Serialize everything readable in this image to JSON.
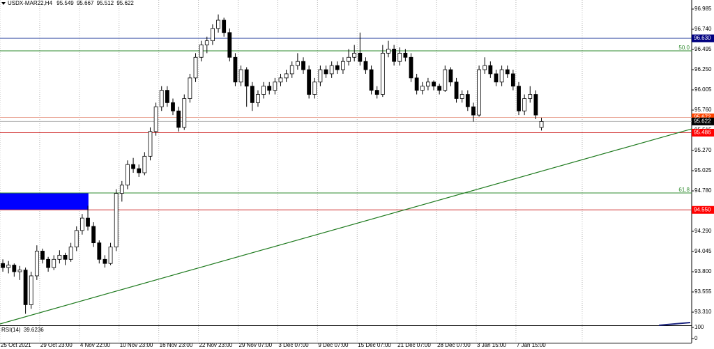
{
  "chart_data": {
    "type": "candlestick",
    "symbol": "USDX-MAR22,H4",
    "ohlc": [
      [
        93.9,
        93.95,
        93.8,
        93.85
      ],
      [
        93.85,
        93.93,
        93.78,
        93.88
      ],
      [
        93.88,
        93.9,
        93.74,
        93.8
      ],
      [
        93.8,
        93.87,
        93.7,
        93.82
      ],
      [
        93.82,
        93.85,
        93.29,
        93.4
      ],
      [
        93.4,
        93.8,
        93.35,
        93.75
      ],
      [
        93.75,
        94.12,
        93.7,
        94.05
      ],
      [
        94.05,
        94.08,
        93.9,
        93.95
      ],
      [
        93.95,
        93.98,
        93.8,
        93.85
      ],
      [
        93.85,
        94.0,
        93.82,
        93.95
      ],
      [
        93.95,
        94.06,
        93.9,
        94.0
      ],
      [
        94.0,
        94.03,
        93.88,
        93.95
      ],
      [
        93.95,
        94.15,
        93.92,
        94.1
      ],
      [
        94.1,
        94.35,
        94.05,
        94.3
      ],
      [
        94.3,
        94.5,
        94.25,
        94.45
      ],
      [
        94.45,
        94.6,
        94.3,
        94.35
      ],
      [
        94.35,
        94.4,
        94.1,
        94.15
      ],
      [
        94.15,
        94.18,
        93.9,
        93.95
      ],
      [
        93.95,
        94.0,
        93.85,
        93.9
      ],
      [
        93.9,
        94.15,
        93.88,
        94.1
      ],
      [
        94.1,
        94.8,
        94.05,
        94.75
      ],
      [
        94.75,
        94.9,
        94.65,
        94.85
      ],
      [
        94.85,
        95.15,
        94.8,
        95.1
      ],
      [
        95.1,
        95.18,
        95.0,
        95.05
      ],
      [
        95.05,
        95.1,
        94.95,
        95.0
      ],
      [
        95.0,
        95.25,
        94.97,
        95.2
      ],
      [
        95.2,
        95.55,
        95.15,
        95.5
      ],
      [
        95.5,
        95.85,
        95.45,
        95.8
      ],
      [
        95.8,
        96.05,
        95.75,
        96.0
      ],
      [
        96.0,
        96.05,
        95.8,
        95.85
      ],
      [
        95.85,
        95.9,
        95.7,
        95.75
      ],
      [
        95.75,
        95.8,
        95.5,
        95.55
      ],
      [
        95.55,
        95.95,
        95.52,
        95.9
      ],
      [
        95.9,
        96.2,
        95.85,
        96.15
      ],
      [
        96.15,
        96.45,
        96.1,
        96.4
      ],
      [
        96.4,
        96.6,
        96.35,
        96.55
      ],
      [
        96.55,
        96.65,
        96.45,
        96.6
      ],
      [
        96.6,
        96.8,
        96.55,
        96.75
      ],
      [
        96.75,
        96.92,
        96.7,
        96.85
      ],
      [
        96.85,
        96.88,
        96.65,
        96.7
      ],
      [
        96.7,
        96.75,
        96.35,
        96.4
      ],
      [
        96.4,
        96.45,
        96.05,
        96.1
      ],
      [
        96.1,
        96.3,
        96.05,
        96.25
      ],
      [
        96.25,
        96.28,
        95.8,
        96.05
      ],
      [
        96.05,
        96.1,
        95.75,
        95.85
      ],
      [
        95.85,
        96.0,
        95.8,
        95.95
      ],
      [
        95.95,
        96.1,
        95.9,
        96.05
      ],
      [
        96.05,
        96.1,
        95.95,
        96.0
      ],
      [
        96.0,
        96.15,
        95.95,
        96.1
      ],
      [
        96.1,
        96.2,
        96.05,
        96.15
      ],
      [
        96.15,
        96.25,
        96.1,
        96.2
      ],
      [
        96.2,
        96.35,
        96.15,
        96.3
      ],
      [
        96.3,
        96.45,
        96.25,
        96.35
      ],
      [
        96.35,
        96.4,
        96.2,
        96.25
      ],
      [
        96.25,
        96.3,
        95.9,
        95.95
      ],
      [
        95.95,
        96.15,
        95.9,
        96.1
      ],
      [
        96.1,
        96.3,
        96.05,
        96.25
      ],
      [
        96.25,
        96.3,
        96.15,
        96.2
      ],
      [
        96.2,
        96.35,
        96.15,
        96.3
      ],
      [
        96.3,
        96.35,
        96.2,
        96.25
      ],
      [
        96.25,
        96.4,
        96.2,
        96.35
      ],
      [
        96.35,
        96.5,
        96.3,
        96.4
      ],
      [
        96.4,
        96.55,
        96.35,
        96.45
      ],
      [
        96.45,
        96.7,
        96.3,
        96.35
      ],
      [
        96.35,
        96.4,
        96.2,
        96.25
      ],
      [
        96.25,
        96.3,
        95.95,
        96.0
      ],
      [
        96.0,
        96.05,
        95.9,
        95.95
      ],
      [
        95.95,
        96.55,
        95.92,
        96.45
      ],
      [
        96.45,
        96.6,
        96.4,
        96.5
      ],
      [
        96.5,
        96.55,
        96.3,
        96.35
      ],
      [
        96.35,
        96.52,
        96.3,
        96.45
      ],
      [
        96.45,
        96.5,
        96.35,
        96.4
      ],
      [
        96.4,
        96.45,
        96.1,
        96.15
      ],
      [
        96.15,
        96.2,
        95.95,
        96.0
      ],
      [
        96.0,
        96.1,
        95.95,
        96.05
      ],
      [
        96.05,
        96.15,
        96.0,
        96.1
      ],
      [
        96.1,
        96.12,
        96.0,
        96.05
      ],
      [
        96.05,
        96.08,
        95.95,
        96.0
      ],
      [
        96.0,
        96.3,
        95.98,
        96.25
      ],
      [
        96.25,
        96.28,
        96.05,
        96.1
      ],
      [
        96.1,
        96.15,
        95.85,
        95.9
      ],
      [
        95.9,
        96.0,
        95.85,
        95.95
      ],
      [
        95.95,
        96.0,
        95.75,
        95.8
      ],
      [
        95.8,
        95.85,
        95.62,
        95.7
      ],
      [
        95.7,
        96.3,
        95.68,
        96.25
      ],
      [
        96.25,
        96.4,
        96.2,
        96.3
      ],
      [
        96.3,
        96.35,
        96.15,
        96.2
      ],
      [
        96.2,
        96.25,
        96.05,
        96.1
      ],
      [
        96.1,
        96.3,
        96.05,
        96.25
      ],
      [
        96.25,
        96.3,
        96.15,
        96.2
      ],
      [
        96.2,
        96.25,
        96.0,
        96.05
      ],
      [
        96.05,
        96.1,
        95.7,
        95.75
      ],
      [
        95.75,
        95.95,
        95.7,
        95.9
      ],
      [
        95.9,
        96.05,
        95.85,
        95.95
      ],
      [
        95.95,
        96.0,
        95.65,
        95.7
      ],
      [
        95.549,
        95.667,
        95.512,
        95.622
      ]
    ],
    "xlim": [
      0,
      122
    ],
    "xticks": [
      {
        "value": 0,
        "label": "25 Oct 2021"
      },
      {
        "value": 7,
        "label": "29 Oct 23:00"
      },
      {
        "value": 14,
        "label": "4 Nov 22:00"
      },
      {
        "value": 21,
        "label": "10 Nov 23:00"
      },
      {
        "value": 28,
        "label": "16 Nov 23:00"
      },
      {
        "value": 35,
        "label": "22 Nov 23:00"
      },
      {
        "value": 42,
        "label": "29 Nov 07:00"
      },
      {
        "value": 49,
        "label": "3 Dec 07:00"
      },
      {
        "value": 56,
        "label": "9 Dec 07:00"
      },
      {
        "value": 63,
        "label": "15 Dec 07:00"
      },
      {
        "value": 70,
        "label": "21 Dec 07:00"
      },
      {
        "value": 77,
        "label": "28 Dec 07:00"
      },
      {
        "value": 84,
        "label": "3 Jan 15:00"
      },
      {
        "value": 91,
        "label": "7 Jan 15:00"
      }
    ],
    "ylim": [
      93.15,
      97.095
    ],
    "yticks": [
      {
        "value": 93.31,
        "label": "93.310"
      },
      93.555,
      {
        "value": 93.8,
        "label": "93.800"
      },
      94.045,
      {
        "value": 94.29,
        "label": "94.290"
      },
      94.535,
      {
        "value": 94.78,
        "label": "94.780"
      },
      95.025,
      {
        "value": 95.27,
        "label": "95.270"
      },
      95.515,
      {
        "value": 95.76,
        "label": "95.760"
      },
      96.005,
      {
        "value": 96.25,
        "label": "96.250"
      },
      96.495,
      {
        "value": 96.74,
        "label": "96.740"
      },
      96.985
    ],
    "grid": true,
    "up_color": "#ffffff",
    "down_color": "#000000",
    "hlines": [
      {
        "price": {
          "value": 96.63,
          "label": "96.630"
        },
        "color": "#1f3a9a",
        "box_color": "#000080"
      },
      {
        "price": 96.478,
        "color": "#2e8b2e",
        "text": "50.0"
      },
      {
        "price": 95.672,
        "color": "#e8a090",
        "box_color": "#ff4500"
      },
      {
        "price": 95.622,
        "color": "#b0b0b0",
        "box_color": "#000000"
      },
      {
        "price": 95.486,
        "color": "#d03030",
        "box_color": "#ff0000"
      },
      {
        "price": 94.755,
        "color": "#2e8b2e",
        "text": "61.8"
      },
      {
        "price": {
          "value": 94.55,
          "label": "94.550"
        },
        "color": "#d03030",
        "box_color": "#ff0000"
      }
    ],
    "rectangle": {
      "x": [
        0,
        15.6
      ],
      "y": [
        94.55,
        94.755
      ],
      "color": "#0000ff"
    },
    "trendline": {
      "x": [
        0,
        122
      ],
      "y": [
        93.167,
        95.532
      ],
      "color": "#1e7a1e"
    },
    "rsi": {
      "label": "RSI(14)",
      "value": 39.6236,
      "ylim": [
        0,
        100
      ],
      "yticks": [
        100,
        0
      ]
    }
  }
}
